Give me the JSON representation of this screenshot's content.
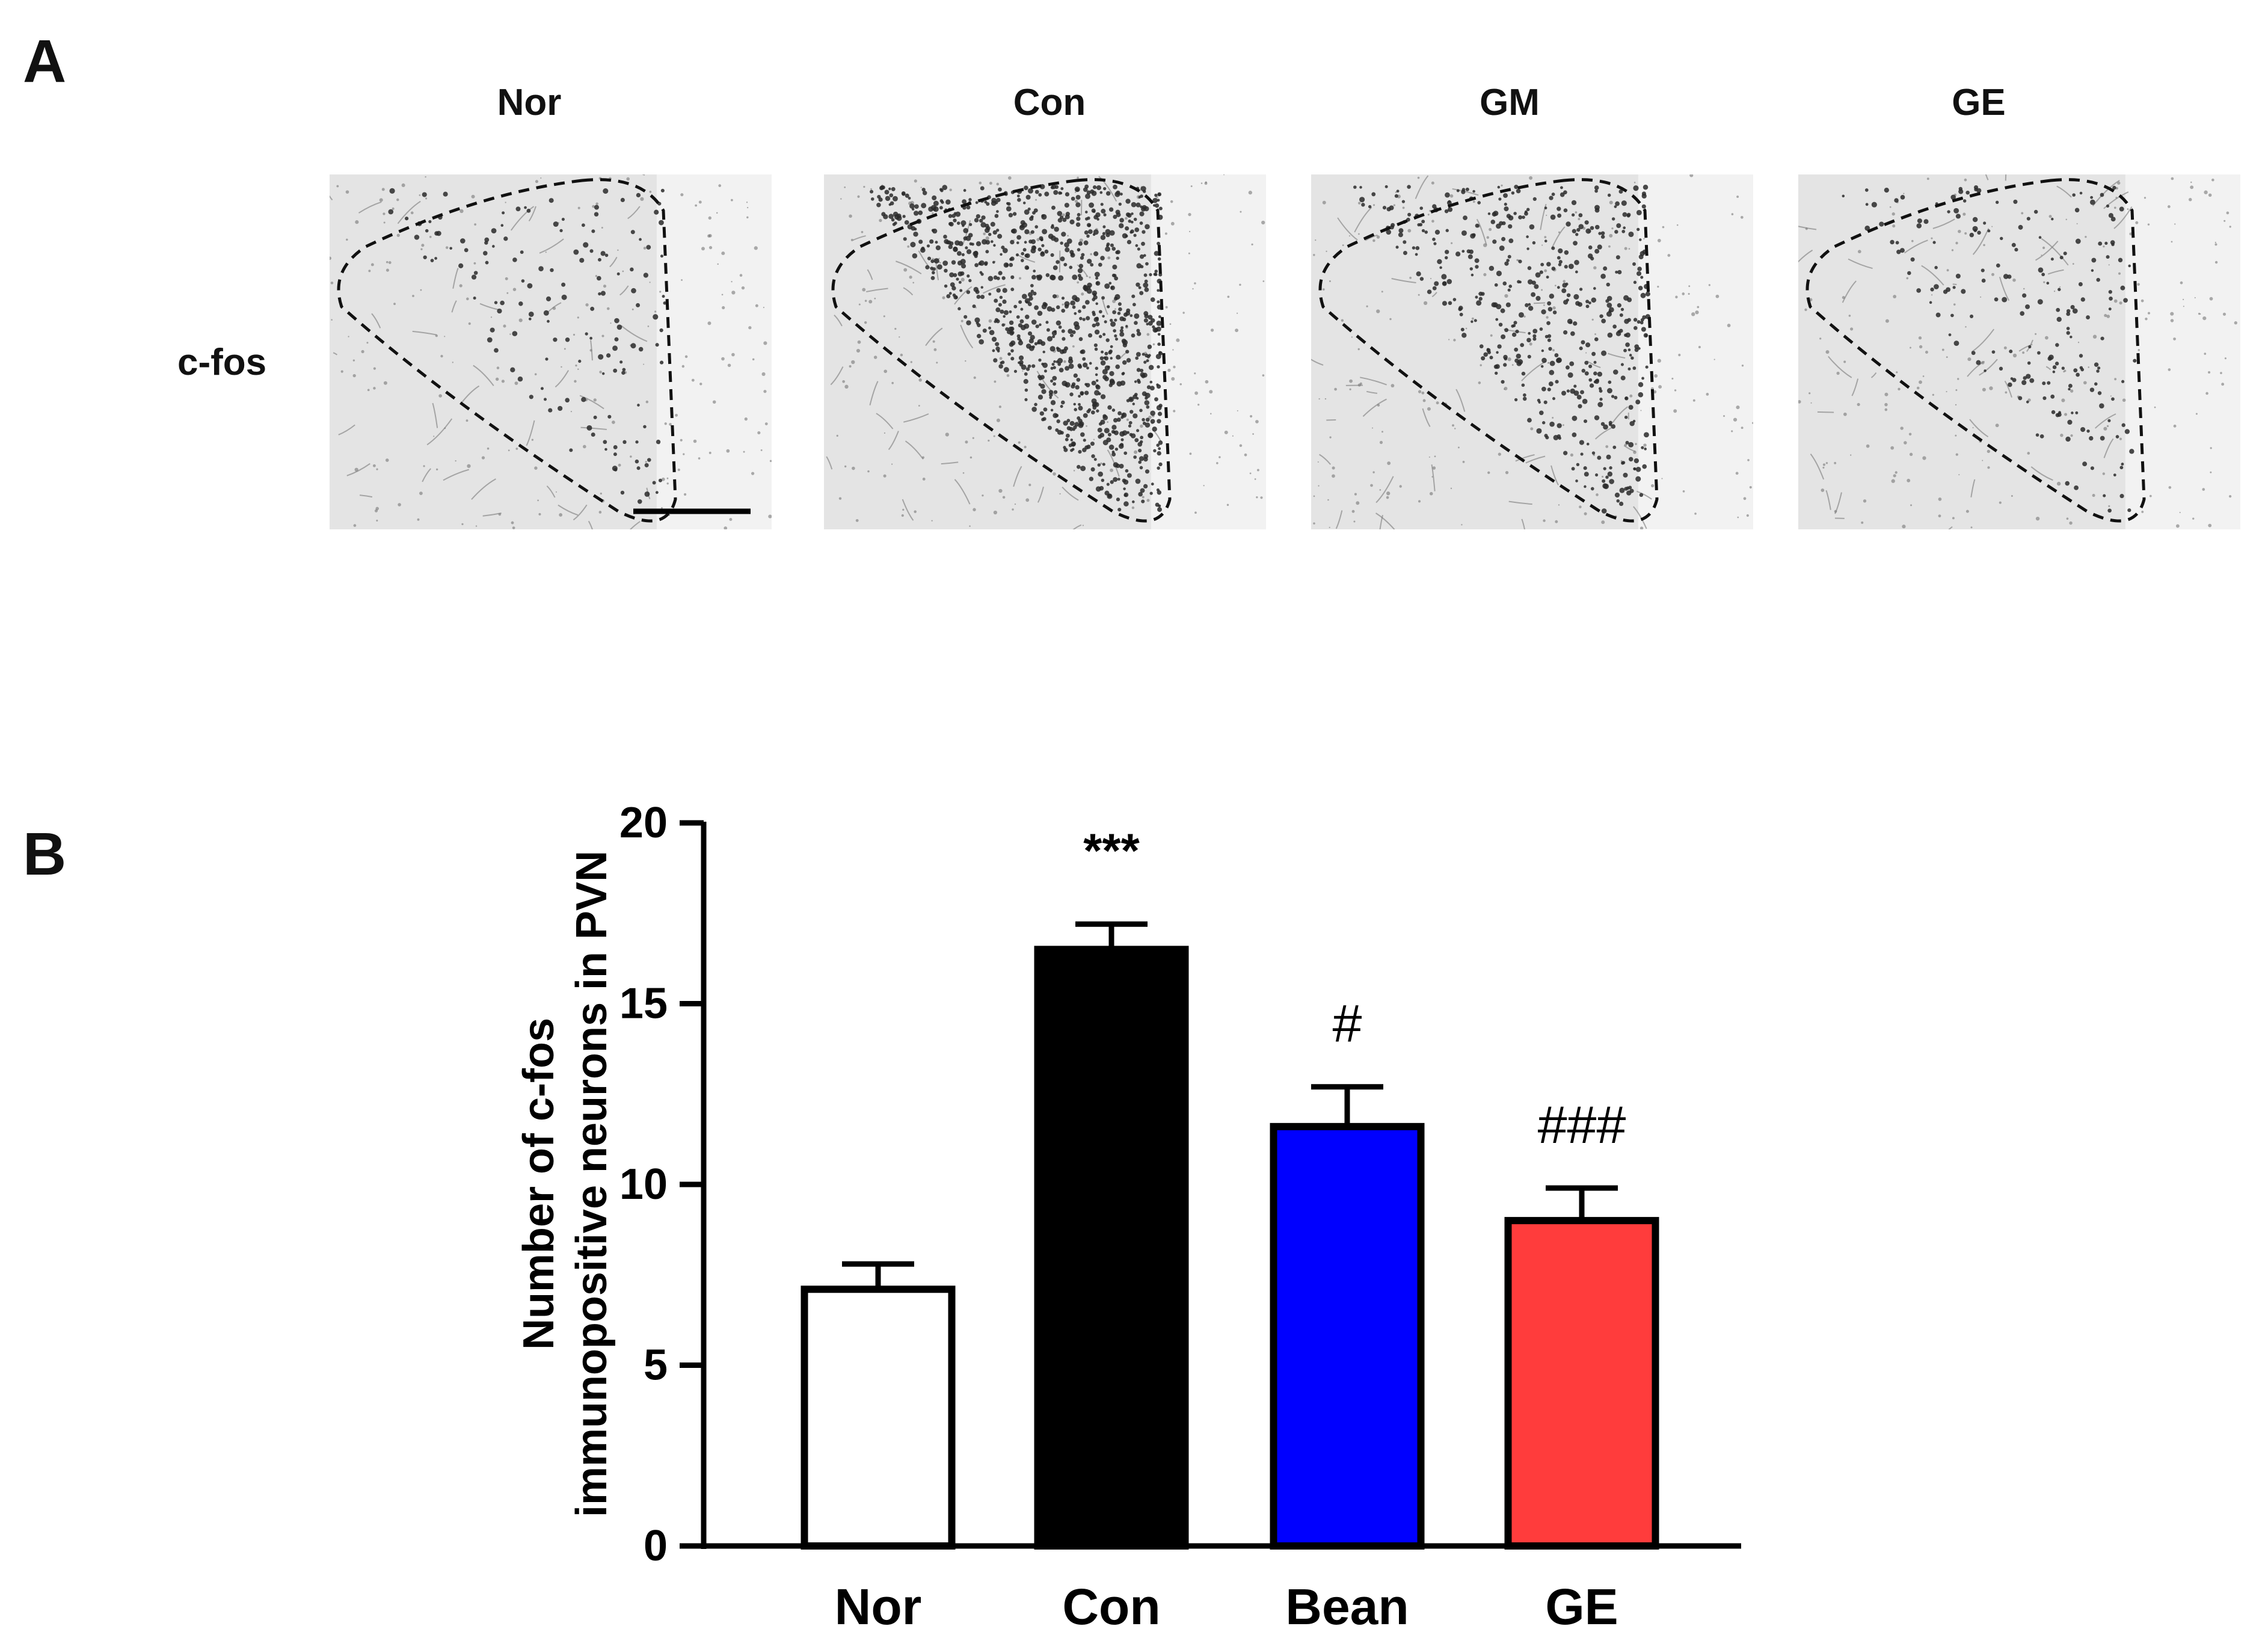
{
  "panel_a": {
    "label": "A",
    "row_label": "c-fos",
    "columns": [
      "Nor",
      "Con",
      "GM",
      "GE"
    ],
    "stain_density": [
      0.15,
      1.0,
      0.5,
      0.2
    ]
  },
  "panel_b": {
    "label": "B"
  },
  "chart_data": {
    "type": "bar",
    "title": "",
    "xlabel": "",
    "ylabel_line1": "Number of c-fos",
    "ylabel_line2": "immunopositive neurons in PVN",
    "ylim": [
      0,
      20
    ],
    "yticks": [
      0,
      5,
      10,
      15,
      20
    ],
    "categories": [
      "Nor",
      "Con",
      "Bean",
      "GE"
    ],
    "values": [
      7.1,
      16.5,
      11.6,
      9.0
    ],
    "errors": [
      0.7,
      0.7,
      1.1,
      0.9
    ],
    "colors": [
      "#ffffff",
      "#000000",
      "#0000ff",
      "#ff3c3c"
    ],
    "annotations": [
      "",
      "***",
      "#",
      "###"
    ]
  }
}
